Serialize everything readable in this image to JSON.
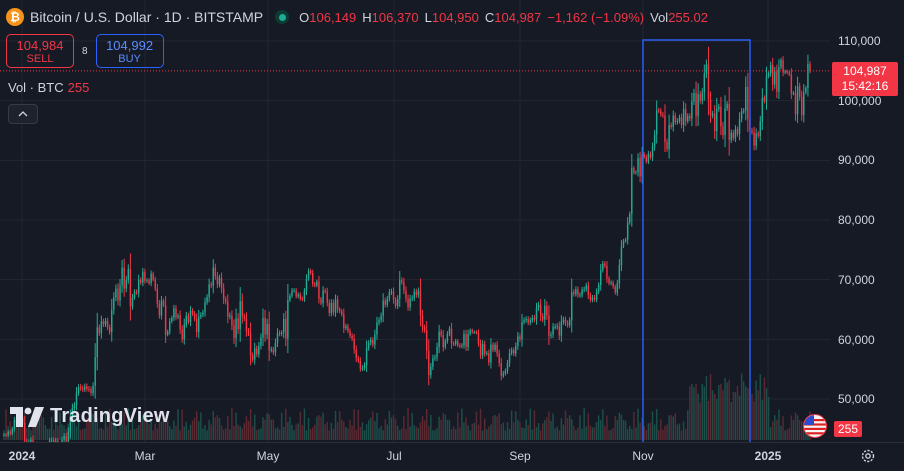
{
  "header": {
    "symbol": "Bitcoin / U.S. Dollar · 1D · BITSTAMP",
    "icon_glyph": "₿",
    "ohlc": [
      {
        "key": "O",
        "value": "106,149"
      },
      {
        "key": "H",
        "value": "106,370"
      },
      {
        "key": "L",
        "value": "104,950"
      },
      {
        "key": "C",
        "value": "104,987"
      }
    ],
    "change": "−1,162 (−1.09%)",
    "vol_key": "Vol",
    "vol_value": "255.02"
  },
  "trade": {
    "sell_price": "104,984",
    "sell_label": "SELL",
    "spread": "8",
    "buy_price": "104,992",
    "buy_label": "BUY"
  },
  "volume_legend": {
    "label": "Vol · BTC",
    "value": "255"
  },
  "price_axis": {
    "labels": [
      "110,000",
      "100,000",
      "90,000",
      "80,000",
      "70,000",
      "60,000",
      "50,000"
    ],
    "current_price": "104,987",
    "countdown": "15:42:16",
    "volume_badge": "255"
  },
  "time_axis": [
    {
      "label": "2024",
      "bold": true
    },
    {
      "label": "Mar",
      "bold": false
    },
    {
      "label": "May",
      "bold": false
    },
    {
      "label": "Jul",
      "bold": false
    },
    {
      "label": "Sep",
      "bold": false
    },
    {
      "label": "Nov",
      "bold": false
    },
    {
      "label": "2025",
      "bold": true
    }
  ],
  "branding": {
    "name": "TradingView"
  },
  "colors": {
    "background": "#161a25",
    "up": "#22ab94",
    "down": "#f23645",
    "highlight": "#2962ff",
    "grid": "#232733"
  },
  "icons": [
    "bitcoin-icon",
    "market-status-icon",
    "chevron-up-icon",
    "us-flag-icon",
    "gear-icon",
    "tradingview-logo-icon"
  ],
  "chart_data": {
    "type": "candlestick",
    "ylim": [
      46000,
      113000
    ],
    "x_ticks": [
      "2024",
      "Mar",
      "May",
      "Jul",
      "Sep",
      "Nov",
      "2025"
    ],
    "grid": true,
    "series": [
      {
        "close": [
          44000,
          43900,
          44500,
          44200,
          45000,
          46500,
          46000,
          47200,
          46800,
          46000,
          43000,
          42500,
          42800,
          43200,
          41500,
          42000,
          40000,
          40500,
          39800,
          40200,
          41500,
          42000,
          43000,
          43100,
          42600,
          43000,
          42000,
          42300,
          43200,
          43800,
          42900,
          44500,
          47000,
          48500,
          49000,
          51000,
          52000,
          51800,
          51600,
          52100,
          51700,
          51600,
          51000,
          52200,
          57000,
          62000,
          61000,
          63000,
          62500,
          63100,
          62000,
          61200,
          65000,
          67000,
          68500,
          66500,
          69000,
          72000,
          68500,
          70000,
          71800,
          65500,
          67000,
          68000,
          67800,
          70000,
          69500,
          71300,
          69800,
          69900,
          69400,
          71000,
          70000,
          68500,
          66000,
          64000,
          66500,
          65700,
          60800,
          61300,
          63000,
          63600,
          65200,
          63700,
          64000,
          61700,
          60000,
          62500,
          64000,
          62900,
          64800,
          64300,
          63400,
          61200,
          63800,
          64100,
          64500,
          66200,
          67100,
          69200,
          69000,
          72000,
          70600,
          69200,
          70300,
          68500,
          66700,
          66300,
          63800,
          64000,
          62300,
          60200,
          63500,
          61700,
          66400,
          63800,
          63500,
          61400,
          61000,
          57300,
          56600,
          58500,
          57500,
          58900,
          60300,
          63600,
          60800,
          62600,
          58200,
          58300,
          57800,
          59400,
          61100,
          60900,
          61100,
          63400,
          60100,
          66600,
          67300,
          68200,
          68200,
          67200,
          67500,
          66800,
          66700,
          68100,
          70200,
          71500,
          71100,
          69300,
          69000,
          69700,
          66800,
          66000,
          68200,
          68000,
          66100,
          64400,
          66100,
          64500,
          66700,
          65000,
          64700,
          64200,
          61900,
          62200,
          61400,
          60600,
          60100,
          58300,
          56800,
          56400,
          55100,
          55200,
          55700,
          58500,
          59400,
          59900,
          59100,
          60800,
          62800,
          63200,
          64000,
          66500,
          65800,
          66800,
          67900,
          68000,
          66600,
          65600,
          66800,
          69900,
          69600,
          68200,
          66800,
          65400,
          66800,
          66900,
          68000,
          67400,
          68200,
          64000,
          62000,
          61500,
          58100,
          54000,
          55400,
          56800,
          57000,
          58700,
          61300,
          60700,
          58700,
          59700,
          60900,
          61800,
          59300,
          59200,
          59700,
          59000,
          58800,
          59000,
          60900,
          58700,
          60900,
          61500,
          61200,
          61200,
          61100,
          59300,
          57300,
          59200,
          57600,
          57700,
          56100,
          59100,
          58200,
          59100,
          57600,
          56000,
          53900,
          54300,
          54700,
          56000,
          57700,
          58200,
          57600,
          58900,
          60500,
          60000,
          62900,
          63200,
          63400,
          62800,
          63200,
          63600,
          63300,
          65200,
          65800,
          63900,
          63300,
          65600,
          64000,
          60600,
          60800,
          62100,
          62100,
          62200,
          60600,
          62900,
          63300,
          62700,
          62400,
          63200,
          67900,
          67600,
          68400,
          67400,
          67400,
          68300,
          68400,
          69000,
          67400,
          66600,
          67000,
          66700,
          68000,
          69100,
          71600,
          72700,
          72300,
          70200,
          69400,
          69500,
          68800,
          67800,
          69400,
          72400,
          75600,
          76500,
          76700,
          79600,
          81000,
          88700,
          87900,
          88000,
          90400,
          87300,
          91000,
          90600,
          89800,
          91100,
          90500,
          92300,
          94300,
          98400,
          98300,
          97700,
          97500,
          93100,
          91900,
          95900,
          95600,
          97500,
          96400,
          96600,
          97200,
          95900,
          98600,
          96600,
          97400,
          97000,
          99900,
          101300,
          97400,
          101100,
          100000,
          101400,
          104500,
          106100,
          100200,
          97500,
          97800,
          94900,
          98600,
          99000,
          95700,
          94200,
          98700,
          99400,
          93400,
          94600,
          93700,
          95200,
          94400,
          96900,
          98200,
          98300,
          102300,
          96900,
          95000,
          94700,
          92500,
          94500,
          94100,
          96500,
          100500,
          99900,
          104100,
          104500,
          106000,
          102700,
          104900,
          101500,
          105600,
          106800,
          104700,
          104900,
          104700,
          104400,
          101200,
          101300,
          97700,
          102400,
          100600,
          97600,
          101400,
          102100,
          106149,
          104987
        ]
      }
    ]
  }
}
